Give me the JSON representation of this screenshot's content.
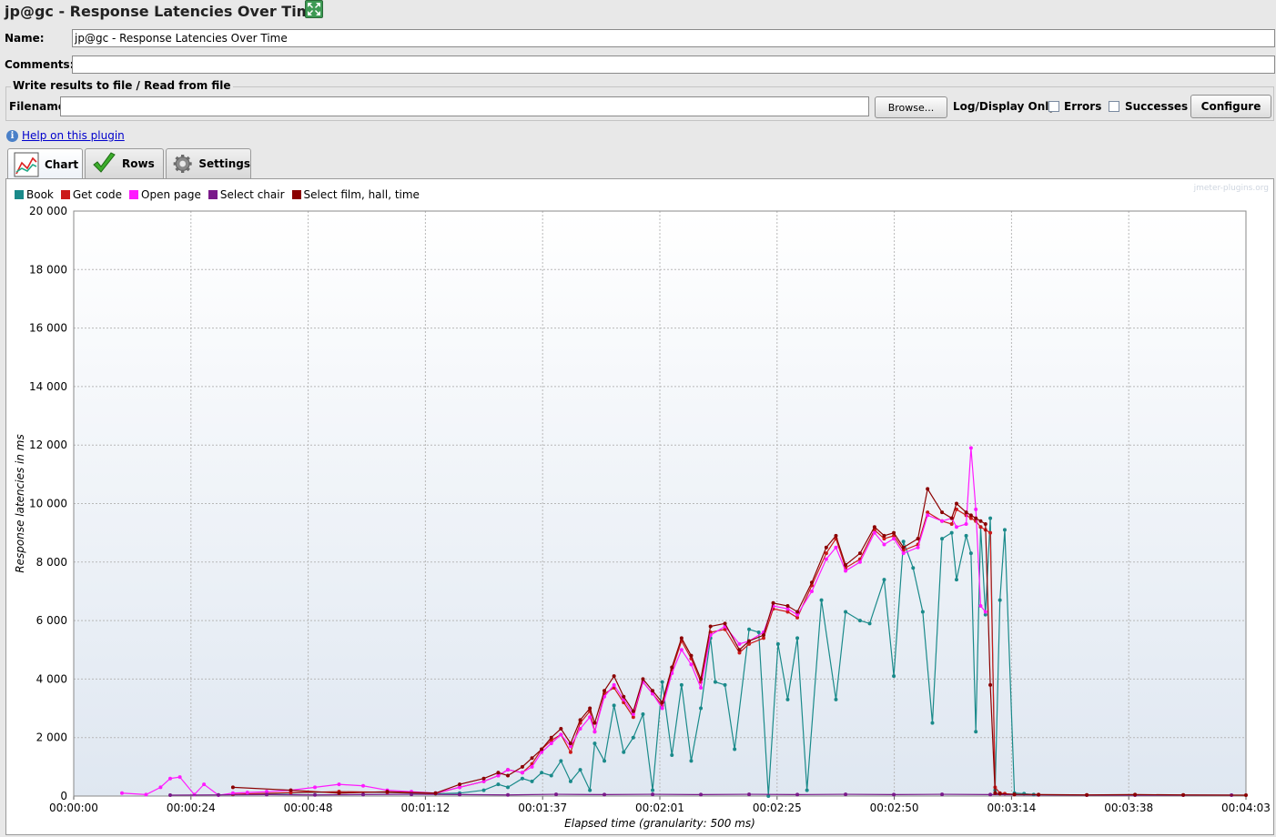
{
  "window": {
    "title": "jp@gc - Response Latencies Over Time"
  },
  "form": {
    "name_label": "Name:",
    "name_value": "jp@gc - Response Latencies Over Time",
    "comments_label": "Comments:",
    "comments_value": "",
    "file_group_title": "Write results to file / Read from file",
    "filename_label": "Filename",
    "filename_value": "",
    "browse_label": "Browse...",
    "log_display_label": "Log/Display Only:",
    "errors_label": "Errors",
    "successes_label": "Successes",
    "configure_label": "Configure"
  },
  "help": {
    "link_text": "Help on this plugin"
  },
  "tabs": [
    {
      "label": "Chart",
      "icon": "chart-icon",
      "active": true
    },
    {
      "label": "Rows",
      "icon": "checkmark-icon",
      "active": false
    },
    {
      "label": "Settings",
      "icon": "gear-icon",
      "active": false
    }
  ],
  "watermark": "jmeter-plugins.org",
  "chart_data": {
    "type": "line",
    "title": "",
    "xlabel": "Elapsed time (granularity: 500 ms)",
    "ylabel": "Response latencies in ms",
    "ylim": [
      0,
      20000
    ],
    "xlim_seconds": [
      0,
      243
    ],
    "x_ticks": [
      "00:00:00",
      "00:00:24",
      "00:00:48",
      "00:01:12",
      "00:01:37",
      "00:02:01",
      "00:02:25",
      "00:02:50",
      "00:03:14",
      "00:03:38",
      "00:04:03"
    ],
    "y_ticks": [
      "0",
      "2 000",
      "4 000",
      "6 000",
      "8 000",
      "10 000",
      "12 000",
      "14 000",
      "16 000",
      "18 000",
      "20 000"
    ],
    "grid": true,
    "legend_position": "top-left",
    "series": [
      {
        "name": "Book",
        "color": "#1a8a8a",
        "x": [
          33,
          45,
          55,
          65,
          75,
          80,
          85,
          88,
          90,
          93,
          95,
          97,
          99,
          101,
          103,
          105,
          107,
          108,
          110,
          112,
          114,
          116,
          118,
          120,
          122,
          124,
          126,
          128,
          130,
          132,
          133,
          135,
          137,
          140,
          142,
          144,
          146,
          148,
          150,
          152,
          155,
          158,
          160,
          163,
          165,
          168,
          170,
          172,
          174,
          176,
          178,
          180,
          182,
          183,
          185,
          186,
          187,
          188,
          189,
          190,
          191,
          192,
          193,
          195,
          197,
          199
        ],
        "y": [
          50,
          100,
          150,
          120,
          80,
          100,
          200,
          400,
          300,
          600,
          500,
          800,
          700,
          1200,
          500,
          900,
          200,
          1800,
          1200,
          3100,
          1500,
          2000,
          2800,
          200,
          3900,
          1400,
          3800,
          1200,
          3000,
          5400,
          3900,
          3800,
          1600,
          5700,
          5600,
          0,
          5200,
          3300,
          5400,
          200,
          6700,
          3300,
          6300,
          6000,
          5900,
          7400,
          4100,
          8700,
          7800,
          6300,
          2500,
          8800,
          9000,
          7400,
          8900,
          8300,
          2200,
          9200,
          6200,
          9500,
          200,
          6700,
          9100,
          100,
          80,
          50
        ]
      },
      {
        "name": "Get code",
        "color": "#cc1a1a",
        "x": [
          33,
          45,
          55,
          65,
          75,
          80,
          85,
          88,
          90,
          93,
          95,
          97,
          99,
          101,
          103,
          105,
          107,
          108,
          110,
          112,
          114,
          116,
          118,
          120,
          122,
          124,
          126,
          128,
          130,
          132,
          135,
          138,
          140,
          143,
          145,
          148,
          150,
          153,
          156,
          158,
          160,
          163,
          166,
          168,
          170,
          172,
          175,
          177,
          180,
          182,
          183,
          185,
          186,
          187,
          188,
          189,
          190,
          191,
          192,
          193,
          195
        ],
        "y": [
          60,
          120,
          150,
          130,
          90,
          300,
          500,
          700,
          900,
          800,
          1100,
          1600,
          1900,
          2100,
          1500,
          2500,
          2900,
          2200,
          3500,
          3700,
          3200,
          2700,
          3900,
          3500,
          3100,
          4300,
          5300,
          4700,
          3900,
          5600,
          5700,
          4900,
          5200,
          5400,
          6400,
          6300,
          6100,
          7200,
          8300,
          8800,
          7800,
          8100,
          9100,
          8800,
          8900,
          8400,
          8600,
          9700,
          9400,
          9300,
          9800,
          9600,
          9500,
          9400,
          9200,
          9100,
          9000,
          300,
          100,
          80,
          50
        ]
      },
      {
        "name": "Open page",
        "color": "#ff1aff",
        "x": [
          10,
          15,
          18,
          20,
          22,
          25,
          27,
          30,
          33,
          36,
          40,
          45,
          50,
          55,
          60,
          65,
          70,
          75,
          80,
          85,
          88,
          90,
          93,
          95,
          97,
          99,
          101,
          103,
          105,
          107,
          108,
          110,
          112,
          114,
          116,
          118,
          120,
          122,
          124,
          126,
          128,
          130,
          132,
          135,
          138,
          140,
          143,
          145,
          148,
          150,
          153,
          156,
          158,
          160,
          163,
          166,
          168,
          170,
          172,
          175,
          177,
          180,
          182,
          183,
          185,
          186,
          187,
          188,
          189
        ],
        "y": [
          100,
          50,
          300,
          600,
          650,
          50,
          400,
          30,
          100,
          120,
          150,
          200,
          300,
          400,
          350,
          200,
          150,
          100,
          300,
          500,
          700,
          900,
          800,
          1000,
          1500,
          1800,
          2100,
          1700,
          2300,
          2700,
          2200,
          3400,
          3800,
          3300,
          2800,
          3900,
          3500,
          3000,
          4200,
          5000,
          4500,
          3700,
          5500,
          5800,
          5200,
          5300,
          5600,
          6500,
          6400,
          6200,
          7000,
          8100,
          8500,
          7700,
          8000,
          9000,
          8600,
          8800,
          8300,
          8500,
          9600,
          9400,
          9500,
          9200,
          9300,
          11900,
          9800,
          6500,
          6300
        ]
      },
      {
        "name": "Select chair",
        "color": "#7a1a8a",
        "x": [
          20,
          30,
          40,
          50,
          60,
          70,
          80,
          90,
          100,
          110,
          120,
          130,
          140,
          150,
          160,
          170,
          180,
          190,
          200,
          210,
          220,
          230,
          240
        ],
        "y": [
          30,
          40,
          50,
          40,
          50,
          60,
          50,
          40,
          60,
          50,
          60,
          50,
          60,
          50,
          60,
          50,
          60,
          50,
          40,
          30,
          30,
          30,
          30
        ]
      },
      {
        "name": "Select film, hall, time",
        "color": "#8b0000",
        "x": [
          33,
          45,
          55,
          65,
          75,
          80,
          85,
          88,
          90,
          93,
          95,
          97,
          99,
          101,
          103,
          105,
          107,
          108,
          110,
          112,
          114,
          116,
          118,
          120,
          122,
          124,
          126,
          128,
          130,
          132,
          135,
          138,
          140,
          143,
          145,
          148,
          150,
          153,
          156,
          158,
          160,
          163,
          166,
          168,
          170,
          172,
          175,
          177,
          180,
          182,
          183,
          185,
          186,
          187,
          188,
          189,
          190,
          191,
          192,
          195,
          200,
          210,
          220,
          230,
          243
        ],
        "y": [
          300,
          200,
          100,
          150,
          100,
          400,
          600,
          800,
          700,
          1000,
          1300,
          1600,
          2000,
          2300,
          1800,
          2600,
          3000,
          2500,
          3600,
          4100,
          3400,
          2900,
          4000,
          3600,
          3200,
          4400,
          5400,
          4800,
          4000,
          5800,
          5900,
          5000,
          5300,
          5500,
          6600,
          6500,
          6300,
          7300,
          8500,
          8900,
          7900,
          8300,
          9200,
          8900,
          9000,
          8500,
          8800,
          10500,
          9700,
          9500,
          10000,
          9700,
          9600,
          9500,
          9400,
          9300,
          3800,
          100,
          80,
          60,
          50,
          40,
          50,
          40,
          30
        ]
      }
    ]
  }
}
